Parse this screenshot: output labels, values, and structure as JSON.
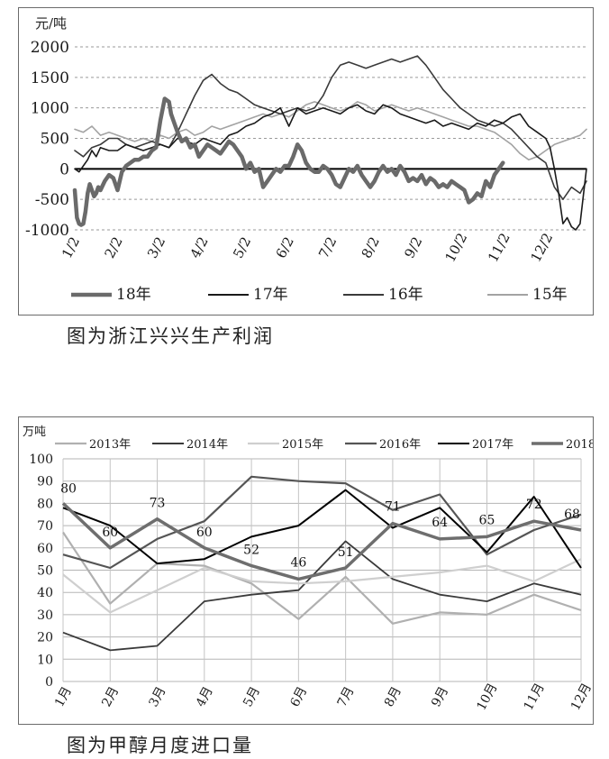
{
  "captions": {
    "chart1": "图为浙江兴兴生产利润",
    "chart2": "图为甲醇月度进口量"
  },
  "chart_data": [
    {
      "type": "line",
      "ylabel": "元/吨",
      "ylim": [
        -1000,
        2000
      ],
      "yticks": [
        2000,
        1500,
        1000,
        500,
        0,
        -500,
        -1000
      ],
      "ytick_labels": [
        "2000",
        "1500",
        "1000",
        "500",
        "0",
        "-500",
        "-1000"
      ],
      "xlim": [
        1,
        12.95
      ],
      "x_unit": "month",
      "categories": [
        "1/2",
        "2/2",
        "3/2",
        "4/2",
        "5/2",
        "6/2",
        "7/2",
        "8/2",
        "9/2",
        "10/2",
        "11/2",
        "12/2"
      ],
      "grid": true,
      "legend_position": "bottom",
      "series": [
        {
          "name": "18年",
          "color": "#6a6a6a",
          "width": 4.5,
          "x": [
            1.0,
            1.05,
            1.1,
            1.15,
            1.2,
            1.25,
            1.3,
            1.35,
            1.4,
            1.45,
            1.5,
            1.55,
            1.6,
            1.7,
            1.8,
            1.9,
            2.0,
            2.1,
            2.2,
            2.3,
            2.4,
            2.5,
            2.6,
            2.7,
            2.8,
            2.9,
            3.0,
            3.1,
            3.2,
            3.25,
            3.3,
            3.4,
            3.5,
            3.6,
            3.7,
            3.8,
            3.9,
            4.0,
            4.1,
            4.2,
            4.3,
            4.4,
            4.5,
            4.6,
            4.7,
            4.8,
            4.9,
            5.0,
            5.1,
            5.2,
            5.3,
            5.4,
            5.5,
            5.6,
            5.7,
            5.8,
            5.9,
            6.0,
            6.1,
            6.2,
            6.3,
            6.4,
            6.5,
            6.6,
            6.7,
            6.8,
            6.9,
            7.0,
            7.1,
            7.2,
            7.3,
            7.4,
            7.5,
            7.6,
            7.7,
            7.8,
            7.9,
            8.0,
            8.1,
            8.2,
            8.3,
            8.4,
            8.5,
            8.6,
            8.7,
            8.8,
            8.9,
            9.0,
            9.1,
            9.2,
            9.3,
            9.4,
            9.5,
            9.6,
            9.7,
            9.8,
            9.9,
            10.0,
            10.1,
            10.2,
            10.3,
            10.4,
            10.5,
            10.6,
            10.7,
            10.8,
            10.9,
            11.0
          ],
          "y": [
            -350,
            -800,
            -900,
            -920,
            -900,
            -700,
            -400,
            -250,
            -350,
            -450,
            -400,
            -300,
            -350,
            -200,
            -100,
            -150,
            -350,
            -50,
            50,
            100,
            150,
            150,
            200,
            200,
            300,
            350,
            800,
            1150,
            1100,
            900,
            800,
            600,
            450,
            500,
            350,
            400,
            200,
            300,
            400,
            350,
            300,
            250,
            350,
            450,
            400,
            300,
            200,
            0,
            100,
            -50,
            0,
            -300,
            -200,
            -100,
            0,
            -50,
            50,
            50,
            200,
            400,
            300,
            100,
            0,
            -50,
            -50,
            50,
            0,
            -100,
            -250,
            -300,
            -150,
            0,
            -50,
            50,
            -100,
            -200,
            -300,
            -200,
            -50,
            50,
            -50,
            0,
            -100,
            50,
            -50,
            -200,
            -150,
            -200,
            -100,
            -250,
            -150,
            -200,
            -300,
            -250,
            -300,
            -200,
            -250,
            -300,
            -350,
            -550,
            -500,
            -400,
            -450,
            -200,
            -300,
            -100,
            0,
            100
          ]
        },
        {
          "name": "17年",
          "color": "#1a1a1a",
          "width": 1.6,
          "x": [
            1.0,
            1.1,
            1.2,
            1.3,
            1.4,
            1.5,
            1.6,
            1.8,
            2.0,
            2.2,
            2.4,
            2.6,
            2.8,
            3.0,
            3.2,
            3.4,
            3.6,
            3.8,
            4.0,
            4.2,
            4.4,
            4.6,
            4.8,
            5.0,
            5.2,
            5.4,
            5.6,
            5.8,
            6.0,
            6.1,
            6.2,
            6.4,
            6.6,
            6.8,
            7.0,
            7.2,
            7.4,
            7.6,
            7.8,
            8.0,
            8.2,
            8.4,
            8.6,
            8.8,
            9.0,
            9.2,
            9.4,
            9.6,
            9.8,
            10.0,
            10.2,
            10.4,
            10.6,
            10.8,
            11.0,
            11.2,
            11.4,
            11.6,
            11.8,
            12.0,
            12.1,
            12.2,
            12.3,
            12.4,
            12.5,
            12.6,
            12.7,
            12.8,
            12.9,
            12.95
          ],
          "y": [
            0,
            -50,
            50,
            150,
            300,
            200,
            350,
            300,
            300,
            400,
            350,
            300,
            350,
            400,
            350,
            500,
            450,
            400,
            500,
            450,
            400,
            550,
            600,
            700,
            750,
            850,
            900,
            1000,
            700,
            850,
            1000,
            900,
            950,
            1000,
            950,
            900,
            1000,
            1050,
            950,
            900,
            1050,
            1000,
            900,
            850,
            800,
            750,
            800,
            700,
            750,
            700,
            650,
            750,
            700,
            800,
            750,
            850,
            900,
            700,
            600,
            500,
            350,
            0,
            -400,
            -900,
            -800,
            -950,
            -1000,
            -900,
            -300,
            0
          ]
        },
        {
          "name": "16年",
          "color": "#3a3a3a",
          "width": 1.6,
          "x": [
            1.0,
            1.2,
            1.4,
            1.6,
            1.8,
            2.0,
            2.2,
            2.4,
            2.6,
            2.8,
            3.0,
            3.2,
            3.4,
            3.6,
            3.8,
            4.0,
            4.2,
            4.4,
            4.6,
            4.8,
            5.0,
            5.2,
            5.4,
            5.6,
            5.8,
            6.0,
            6.2,
            6.4,
            6.6,
            6.8,
            7.0,
            7.2,
            7.4,
            7.6,
            7.8,
            8.0,
            8.2,
            8.4,
            8.6,
            8.8,
            9.0,
            9.2,
            9.4,
            9.6,
            9.8,
            10.0,
            10.2,
            10.4,
            10.6,
            10.8,
            11.0,
            11.2,
            11.4,
            11.6,
            11.8,
            12.0,
            12.2,
            12.4,
            12.6,
            12.8,
            12.95
          ],
          "y": [
            300,
            200,
            350,
            400,
            500,
            500,
            400,
            350,
            400,
            450,
            400,
            350,
            600,
            900,
            1200,
            1450,
            1550,
            1400,
            1300,
            1250,
            1150,
            1050,
            1000,
            950,
            900,
            950,
            1000,
            950,
            1000,
            1200,
            1500,
            1700,
            1750,
            1700,
            1650,
            1700,
            1750,
            1800,
            1750,
            1800,
            1850,
            1700,
            1500,
            1300,
            1150,
            1000,
            900,
            800,
            750,
            700,
            750,
            650,
            500,
            350,
            200,
            100,
            -300,
            -500,
            -300,
            -400,
            -200
          ]
        },
        {
          "name": "15年",
          "color": "#a3a3a3",
          "width": 1.6,
          "x": [
            1.0,
            1.2,
            1.4,
            1.6,
            1.8,
            2.0,
            2.2,
            2.4,
            2.6,
            2.8,
            3.0,
            3.2,
            3.4,
            3.6,
            3.8,
            4.0,
            4.2,
            4.4,
            4.6,
            4.8,
            5.0,
            5.2,
            5.4,
            5.6,
            5.8,
            6.0,
            6.2,
            6.4,
            6.6,
            6.8,
            7.0,
            7.2,
            7.4,
            7.6,
            7.8,
            8.0,
            8.2,
            8.4,
            8.6,
            8.8,
            9.0,
            9.2,
            9.4,
            9.6,
            9.8,
            10.0,
            10.2,
            10.4,
            10.6,
            10.8,
            11.0,
            11.2,
            11.4,
            11.6,
            11.8,
            12.0,
            12.2,
            12.4,
            12.6,
            12.8,
            12.95
          ],
          "y": [
            650,
            600,
            700,
            550,
            600,
            550,
            500,
            450,
            500,
            450,
            550,
            500,
            600,
            650,
            550,
            600,
            700,
            650,
            700,
            750,
            800,
            850,
            900,
            850,
            900,
            850,
            950,
            1050,
            1100,
            1050,
            1000,
            950,
            1000,
            1100,
            1050,
            950,
            1000,
            1050,
            1000,
            950,
            1000,
            950,
            900,
            850,
            800,
            750,
            700,
            700,
            650,
            600,
            500,
            400,
            250,
            150,
            200,
            300,
            400,
            450,
            500,
            550,
            650
          ]
        }
      ],
      "legend": [
        "18年",
        "17年",
        "16年",
        "15年"
      ]
    },
    {
      "type": "line",
      "ylabel": "万吨",
      "ylim": [
        0,
        100
      ],
      "yticks": [
        0,
        10,
        20,
        30,
        40,
        50,
        60,
        70,
        80,
        90,
        100
      ],
      "ytick_labels": [
        "0",
        "10",
        "20",
        "30",
        "40",
        "50",
        "60",
        "70",
        "80",
        "90",
        "100"
      ],
      "categories": [
        "1月",
        "2月",
        "3月",
        "4月",
        "5月",
        "6月",
        "7月",
        "8月",
        "9月",
        "10月",
        "11月",
        "12月"
      ],
      "grid": true,
      "legend_position": "top",
      "series": [
        {
          "name": "2013年",
          "color": "#b0b0b0",
          "width": 2.2,
          "values": [
            67,
            35,
            53,
            52,
            44,
            28,
            47,
            26,
            31,
            30,
            39,
            32
          ]
        },
        {
          "name": "2014年",
          "color": "#3a3a3a",
          "width": 1.8,
          "values": [
            22,
            14,
            16,
            36,
            39,
            41,
            63,
            46,
            39,
            36,
            44,
            39
          ]
        },
        {
          "name": "2015年",
          "color": "#cfcfcf",
          "width": 2.2,
          "values": [
            48,
            31,
            41,
            51,
            45,
            44,
            45,
            47,
            49,
            52,
            45,
            55
          ]
        },
        {
          "name": "2016年",
          "color": "#555555",
          "width": 2.2,
          "values": [
            57,
            51,
            64,
            72,
            92,
            90,
            89,
            77,
            84,
            57,
            68,
            75
          ]
        },
        {
          "name": "2017年",
          "color": "#000000",
          "width": 2.0,
          "values": [
            78,
            70,
            53,
            55,
            65,
            70,
            86,
            69,
            78,
            58,
            83,
            51
          ]
        },
        {
          "name": "2018年",
          "color": "#6e6e6e",
          "width": 3.5,
          "values": [
            80,
            60,
            73,
            60,
            52,
            46,
            51,
            71,
            64,
            65,
            72,
            68
          ]
        }
      ],
      "data_labels": {
        "series": "2018年",
        "values": [
          "80",
          "60",
          "73",
          "60",
          "52",
          "46",
          "51",
          "71",
          "64",
          "65",
          "72",
          "68"
        ]
      },
      "legend": [
        "2013年",
        "2014年",
        "2015年",
        "2016年",
        "2017年",
        "2018年"
      ]
    }
  ]
}
